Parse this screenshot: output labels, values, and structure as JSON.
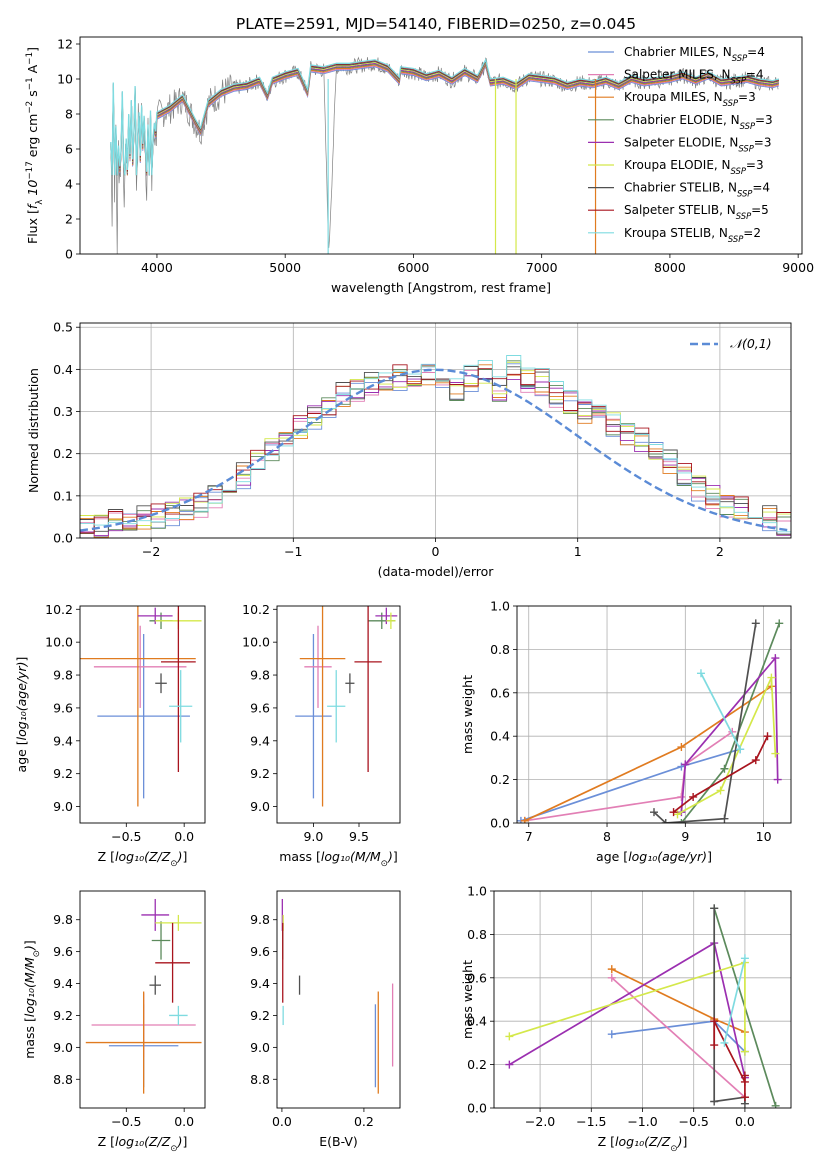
{
  "figure_title": "PLATE=2591, MJD=54140, FIBERID=0250, z=0.045",
  "models": [
    {
      "name": "Chabrier MILES",
      "n_ssp": "4",
      "color": "#6b8fd8"
    },
    {
      "name": "Salpeter MILES",
      "n_ssp": "4",
      "color": "#e27fb5"
    },
    {
      "name": "Kroupa MILES",
      "n_ssp": "3",
      "color": "#e07b20"
    },
    {
      "name": "Chabrier ELODIE",
      "n_ssp": "3",
      "color": "#5c8a5c"
    },
    {
      "name": "Salpeter ELODIE",
      "n_ssp": "3",
      "color": "#9b2fb0"
    },
    {
      "name": "Kroupa ELODIE",
      "n_ssp": "3",
      "color": "#d4e84a"
    },
    {
      "name": "Chabrier STELIB",
      "n_ssp": "4",
      "color": "#505050"
    },
    {
      "name": "Salpeter STELIB",
      "n_ssp": "5",
      "color": "#a8141e"
    },
    {
      "name": "Kroupa STELIB",
      "n_ssp": "2",
      "color": "#7fdbe0"
    }
  ],
  "colors": {
    "data_spectrum": "#808080",
    "normal_curve": "#5b8bd6",
    "grid": "#b0b0b0"
  },
  "chart_data": [
    {
      "id": "spectrum",
      "type": "line",
      "xlabel": "wavelength [Angstrom, rest frame]",
      "ylabel": "Flux [$f_\\lambda 10^{-17}$ erg cm$^{-2}$ s$^{-1}$ A$^{-1}$]",
      "xlim": [
        3400,
        9030
      ],
      "ylim": [
        0,
        12.4
      ],
      "xticks": [
        4000,
        5000,
        6000,
        7000,
        8000,
        9000
      ],
      "yticks": [
        0,
        2,
        4,
        6,
        8,
        10,
        12
      ],
      "legend_position": "right",
      "series": [
        {
          "name": "data",
          "x": [
            3640,
            3650,
            3660,
            3670,
            3680,
            3690,
            3700,
            3710,
            3720,
            3730,
            3740,
            3750,
            3760,
            3770,
            3780,
            3790,
            3800,
            3810,
            3820,
            3830,
            3840,
            3850,
            3860,
            3870,
            3880,
            3890,
            3900,
            3910,
            3920,
            3930,
            3940,
            3950,
            3960,
            3970,
            3980,
            3990,
            4000,
            4100,
            4200,
            4300,
            4340,
            4400,
            4500,
            4600,
            4700,
            4800,
            4861,
            4900,
            5000,
            5100,
            5175,
            5200,
            5300,
            5340,
            5400,
            5500,
            5600,
            5700,
            5800,
            5890,
            5900,
            6000,
            6100,
            6200,
            6300,
            6400,
            6500,
            6563,
            6600,
            6700,
            6800,
            6900,
            7000,
            7100,
            7200,
            7300,
            7400,
            7500,
            7600,
            7700,
            7800,
            7900,
            8000,
            8100,
            8200,
            8300,
            8400,
            8500,
            8600,
            8700,
            8800,
            8850
          ],
          "y": [
            6.2,
            2.8,
            9.6,
            4.3,
            7.1,
            0.4,
            6.0,
            4.8,
            5.7,
            9.1,
            5.0,
            3.2,
            6.4,
            4.6,
            7.8,
            5.5,
            8.6,
            5.2,
            6.8,
            9.4,
            4.1,
            6.6,
            7.9,
            5.4,
            8.3,
            6.1,
            7.7,
            5.9,
            4.5,
            7.2,
            3.5,
            8.0,
            3.8,
            6.5,
            7.3,
            6.8,
            7.9,
            8.3,
            8.9,
            7.5,
            7.0,
            8.6,
            9.2,
            9.5,
            9.6,
            9.9,
            9.0,
            9.9,
            10.2,
            10.4,
            9.2,
            10.6,
            10.5,
            0,
            10.7,
            10.7,
            10.8,
            10.9,
            10.6,
            9.9,
            10.5,
            10.4,
            10.1,
            10.3,
            9.9,
            10.4,
            10.0,
            10.9,
            9.8,
            9.9,
            9.6,
            10.1,
            10.0,
            9.9,
            9.6,
            9.8,
            9.7,
            9.9,
            9.6,
            10.0,
            9.8,
            9.9,
            10.0,
            10.2,
            9.9,
            10.2,
            9.8,
            9.9,
            10.0,
            9.8,
            9.7,
            9.8
          ],
          "color": "#808080"
        }
      ]
    },
    {
      "id": "residual_hist",
      "type": "line",
      "xlabel": "(data-model)/error",
      "ylabel": "Normed distribution",
      "xlim": [
        -2.5,
        2.5
      ],
      "ylim": [
        0,
        0.51
      ],
      "xticks": [
        -2,
        -1,
        0,
        1,
        2
      ],
      "yticks": [
        0.0,
        0.1,
        0.2,
        0.3,
        0.4,
        0.5
      ],
      "legend": "$\\mathcal{N}(0,1)$",
      "legend_position": "top-right",
      "bin_width": 0.1,
      "bin_start": -2.5,
      "series": [
        {
          "name": "Chabrier MILES",
          "values": [
            0.03,
            0.03,
            0.04,
            0.04,
            0.05,
            0.05,
            0.06,
            0.07,
            0.08,
            0.1,
            0.13,
            0.15,
            0.18,
            0.21,
            0.23,
            0.26,
            0.29,
            0.31,
            0.34,
            0.35,
            0.37,
            0.38,
            0.38,
            0.37,
            0.39,
            0.35,
            0.35,
            0.38,
            0.39,
            0.35,
            0.4,
            0.37,
            0.37,
            0.34,
            0.32,
            0.3,
            0.29,
            0.27,
            0.25,
            0.23,
            0.21,
            0.18,
            0.15,
            0.12,
            0.1,
            0.08,
            0.07,
            0.06,
            0.05,
            0.03
          ]
        }
      ]
    },
    {
      "id": "z_vs_age",
      "type": "scatter",
      "xlabel": "Z [$\\log_{10}(Z/Z_\\odot)$]",
      "ylabel": "age  [$\\log_{10}(age/yr)$]",
      "xlim": [
        -0.9,
        0.18
      ],
      "ylim": [
        8.9,
        10.22
      ],
      "xticks": [
        -0.5,
        0.0
      ],
      "yticks": [
        9.0,
        9.2,
        9.4,
        9.6,
        9.8,
        10.0,
        10.2
      ],
      "points": [
        {
          "x": -0.35,
          "y": 9.55,
          "xerr": 0.4,
          "yerr": 0.5
        }
      ]
    },
    {
      "id": "mass_vs_age",
      "type": "scatter",
      "xlabel": "mass [$\\log_{10}(M/M_\\odot)$]",
      "ylabel": "",
      "xlim": [
        8.6,
        9.95
      ],
      "ylim": [
        8.9,
        10.22
      ],
      "xticks": [
        9.0,
        9.5
      ],
      "yticks": [
        9.0,
        9.2,
        9.4,
        9.6,
        9.8,
        10.0,
        10.2
      ],
      "points": [
        {
          "x": 9.0,
          "y": 9.55,
          "xerr": 0.2,
          "yerr": 0.5
        }
      ]
    },
    {
      "id": "age_vs_massweight",
      "type": "line",
      "xlabel": "age  [$\\log_{10}(age/yr)$]",
      "ylabel": "mass weight",
      "xlim": [
        6.85,
        10.35
      ],
      "ylim": [
        0,
        1.0
      ],
      "xticks": [
        7,
        8,
        9,
        10
      ],
      "yticks": [
        0.0,
        0.2,
        0.4,
        0.6,
        0.8,
        1.0
      ],
      "series": [
        {
          "name": "Chabrier MILES",
          "x": [
            6.9,
            8.95,
            9.7
          ],
          "y": [
            0.01,
            0.26,
            0.34
          ]
        }
      ]
    },
    {
      "id": "z_vs_mass",
      "type": "scatter",
      "xlabel": "Z [$\\log_{10}(Z/Z_\\odot)$]",
      "ylabel": "mass [$\\log_{10}(M/M_\\odot)$]",
      "xlim": [
        -0.9,
        0.18
      ],
      "ylim": [
        8.62,
        9.98
      ],
      "xticks": [
        -0.5,
        0.0
      ],
      "yticks": [
        8.8,
        9.0,
        9.2,
        9.4,
        9.6,
        9.8
      ],
      "points": [
        {
          "x": -0.35,
          "y": 9.01,
          "xerr": 0.3,
          "yerr": 0.26
        }
      ]
    },
    {
      "id": "ebv_vs_mass",
      "type": "scatter",
      "xlabel": "E(B-V)",
      "ylabel": "",
      "xlim": [
        -0.012,
        0.288
      ],
      "ylim": [
        8.62,
        9.98
      ],
      "xticks": [
        0.0,
        0.2
      ],
      "yticks": [
        8.8,
        9.0,
        9.2,
        9.4,
        9.6,
        9.8
      ],
      "points": [
        {
          "x": 0.228,
          "y": 9.01,
          "yerr": 0.26
        }
      ]
    },
    {
      "id": "z_vs_massweight",
      "type": "line",
      "xlabel": "Z [$\\log_{10}(Z/Z_\\odot)$]",
      "ylabel": "mass weight",
      "xlim": [
        -2.45,
        0.45
      ],
      "ylim": [
        0,
        1.0
      ],
      "xticks": [
        -2.0,
        -1.5,
        -1.0,
        -0.5,
        0.0
      ],
      "yticks": [
        0.0,
        0.2,
        0.4,
        0.6,
        0.8,
        1.0
      ],
      "series": [
        {
          "name": "Chabrier MILES",
          "x": [
            -1.3,
            -0.3,
            0.0
          ],
          "y": [
            0.34,
            0.4,
            0.26
          ]
        }
      ]
    }
  ]
}
